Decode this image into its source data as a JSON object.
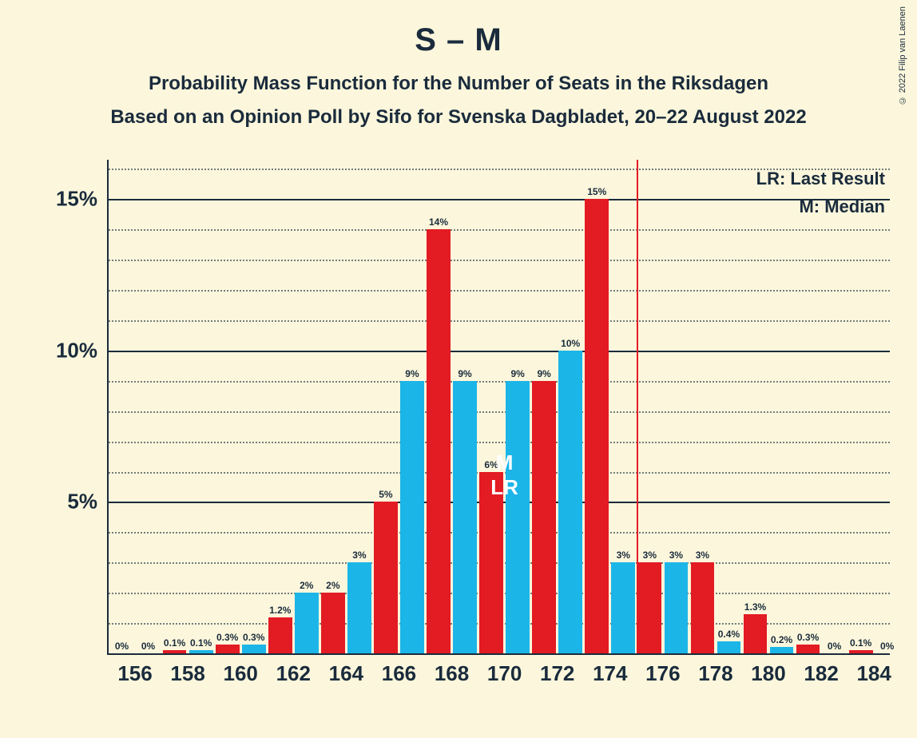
{
  "copyright": "© 2022 Filip van Laenen",
  "title": "S – M",
  "subtitle": "Probability Mass Function for the Number of Seats in the Riksdagen",
  "subtitle2": "Based on an Opinion Poll by Sifo for Svenska Dagbladet, 20–22 August 2022",
  "legend": {
    "lr": "LR: Last Result",
    "m": "M: Median"
  },
  "chart": {
    "type": "bar",
    "background_color": "#fcf7dc",
    "text_color": "#1a2b3c",
    "ylim": [
      0,
      16.3
    ],
    "ytick_major": [
      5,
      10,
      15
    ],
    "ytick_major_labels": [
      "5%",
      "10%",
      "15%"
    ],
    "ytick_minor_step": 1,
    "xtick_labels": [
      "156",
      "158",
      "160",
      "162",
      "164",
      "166",
      "168",
      "170",
      "172",
      "174",
      "176",
      "178",
      "180",
      "182",
      "184"
    ],
    "xtick_positions": [
      156,
      158,
      160,
      162,
      164,
      166,
      168,
      170,
      172,
      174,
      176,
      178,
      180,
      182,
      184
    ],
    "xlim": [
      155,
      184.6
    ],
    "bar_width_data": 0.9,
    "series": [
      {
        "name": "red",
        "color": "#e31b23",
        "offset": -0.5,
        "points": [
          {
            "x": 156,
            "v": 0,
            "label": "0%"
          },
          {
            "x": 158,
            "v": 0.1,
            "label": "0.1%"
          },
          {
            "x": 160,
            "v": 0.3,
            "label": "0.3%"
          },
          {
            "x": 162,
            "v": 1.2,
            "label": "1.2%"
          },
          {
            "x": 164,
            "v": 2,
            "label": "2%"
          },
          {
            "x": 166,
            "v": 5,
            "label": "5%"
          },
          {
            "x": 168,
            "v": 14,
            "label": "14%"
          },
          {
            "x": 170,
            "v": 6,
            "label": "6%"
          },
          {
            "x": 172,
            "v": 9,
            "label": "9%"
          },
          {
            "x": 174,
            "v": 15,
            "label": "15%"
          },
          {
            "x": 176,
            "v": 3,
            "label": "3%"
          },
          {
            "x": 178,
            "v": 3,
            "label": "3%"
          },
          {
            "x": 180,
            "v": 1.3,
            "label": "1.3%"
          },
          {
            "x": 182,
            "v": 0.3,
            "label": "0.3%"
          },
          {
            "x": 184,
            "v": 0.1,
            "label": "0.1%"
          }
        ]
      },
      {
        "name": "blue",
        "color": "#1cb5e8",
        "offset": 0.5,
        "points": [
          {
            "x": 156,
            "v": 0,
            "label": "0%"
          },
          {
            "x": 158,
            "v": 0.1,
            "label": "0.1%"
          },
          {
            "x": 160,
            "v": 0.3,
            "label": "0.3%"
          },
          {
            "x": 162,
            "v": 2,
            "label": "2%"
          },
          {
            "x": 164,
            "v": 3,
            "label": "3%"
          },
          {
            "x": 166,
            "v": 9,
            "label": "9%"
          },
          {
            "x": 168,
            "v": 9,
            "label": "9%"
          },
          {
            "x": 170,
            "v": 9,
            "label": "9%"
          },
          {
            "x": 172,
            "v": 10,
            "label": "10%"
          },
          {
            "x": 174,
            "v": 3,
            "label": "3%"
          },
          {
            "x": 176,
            "v": 3,
            "label": "3%"
          },
          {
            "x": 178,
            "v": 0.4,
            "label": "0.4%"
          },
          {
            "x": 180,
            "v": 0.2,
            "label": "0.2%"
          },
          {
            "x": 182,
            "v": 0,
            "label": "0%"
          },
          {
            "x": 184,
            "v": 0,
            "label": "0%"
          }
        ]
      }
    ],
    "vline": {
      "x": 175,
      "color": "#e31b23"
    },
    "annotations": {
      "M": {
        "text": "M",
        "x": 170,
        "y_percent_from_top": 59
      },
      "LR": {
        "text": "LR",
        "x": 170,
        "y_percent_from_top": 64
      }
    }
  }
}
